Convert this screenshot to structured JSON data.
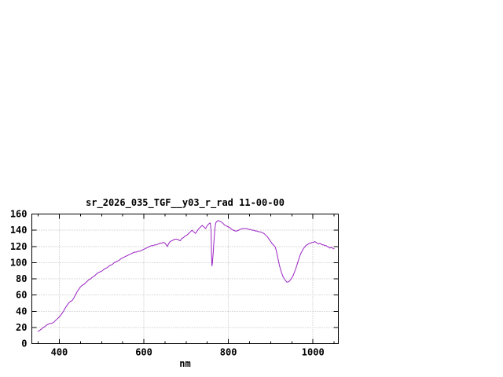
{
  "chart_data": {
    "type": "line",
    "title": "sr_2026_035_TGF__y03_r_rad 11-00-00",
    "xlabel": "nm",
    "ylabel": "",
    "xlim": [
      335,
      1060
    ],
    "ylim": [
      0,
      160
    ],
    "x_ticks": [
      400,
      600,
      800,
      1000
    ],
    "x_ticks_minor": [
      350,
      450,
      500,
      550,
      650,
      700,
      750,
      850,
      900,
      950,
      1050
    ],
    "y_ticks": [
      0,
      20,
      40,
      60,
      80,
      100,
      120,
      140,
      160
    ],
    "grid": true,
    "legend": "none",
    "line_color": "#9a22c4",
    "series": [
      {
        "name": "sr_2026_035_TGF__y03_r_rad",
        "points": [
          [
            350,
            15
          ],
          [
            355,
            17
          ],
          [
            358,
            18
          ],
          [
            362,
            20
          ],
          [
            366,
            21
          ],
          [
            370,
            23
          ],
          [
            374,
            24
          ],
          [
            378,
            25
          ],
          [
            382,
            25
          ],
          [
            386,
            26
          ],
          [
            390,
            28
          ],
          [
            394,
            30
          ],
          [
            398,
            32
          ],
          [
            402,
            34
          ],
          [
            406,
            37
          ],
          [
            410,
            40
          ],
          [
            414,
            44
          ],
          [
            418,
            47
          ],
          [
            422,
            50
          ],
          [
            426,
            52
          ],
          [
            430,
            53
          ],
          [
            434,
            56
          ],
          [
            438,
            60
          ],
          [
            442,
            64
          ],
          [
            446,
            67
          ],
          [
            450,
            70
          ],
          [
            454,
            72
          ],
          [
            458,
            73
          ],
          [
            462,
            75
          ],
          [
            466,
            77
          ],
          [
            470,
            79
          ],
          [
            474,
            80
          ],
          [
            478,
            82
          ],
          [
            482,
            83
          ],
          [
            486,
            85
          ],
          [
            490,
            87
          ],
          [
            494,
            88
          ],
          [
            498,
            89
          ],
          [
            502,
            90
          ],
          [
            506,
            92
          ],
          [
            510,
            93
          ],
          [
            514,
            94
          ],
          [
            518,
            96
          ],
          [
            522,
            97
          ],
          [
            526,
            98
          ],
          [
            530,
            100
          ],
          [
            534,
            101
          ],
          [
            538,
            102
          ],
          [
            542,
            103
          ],
          [
            546,
            105
          ],
          [
            550,
            106
          ],
          [
            554,
            107
          ],
          [
            558,
            108
          ],
          [
            562,
            109
          ],
          [
            566,
            110
          ],
          [
            570,
            111
          ],
          [
            574,
            112
          ],
          [
            578,
            113
          ],
          [
            582,
            113
          ],
          [
            586,
            114
          ],
          [
            590,
            114
          ],
          [
            594,
            115
          ],
          [
            598,
            116
          ],
          [
            602,
            117
          ],
          [
            606,
            118
          ],
          [
            610,
            119
          ],
          [
            614,
            120
          ],
          [
            618,
            121
          ],
          [
            622,
            121
          ],
          [
            626,
            122
          ],
          [
            630,
            122
          ],
          [
            634,
            123
          ],
          [
            638,
            124
          ],
          [
            642,
            124
          ],
          [
            646,
            125
          ],
          [
            650,
            124
          ],
          [
            654,
            121
          ],
          [
            656,
            120
          ],
          [
            658,
            123
          ],
          [
            662,
            126
          ],
          [
            666,
            127
          ],
          [
            670,
            128
          ],
          [
            674,
            129
          ],
          [
            678,
            129
          ],
          [
            682,
            128
          ],
          [
            686,
            127
          ],
          [
            690,
            130
          ],
          [
            694,
            131
          ],
          [
            698,
            133
          ],
          [
            702,
            134
          ],
          [
            706,
            136
          ],
          [
            710,
            138
          ],
          [
            714,
            140
          ],
          [
            718,
            138
          ],
          [
            722,
            136
          ],
          [
            726,
            139
          ],
          [
            730,
            142
          ],
          [
            734,
            144
          ],
          [
            738,
            146
          ],
          [
            742,
            144
          ],
          [
            746,
            142
          ],
          [
            750,
            146
          ],
          [
            754,
            148
          ],
          [
            757,
            149
          ],
          [
            759,
            140
          ],
          [
            760,
            110
          ],
          [
            761,
            96
          ],
          [
            762,
            99
          ],
          [
            764,
            112
          ],
          [
            766,
            128
          ],
          [
            768,
            142
          ],
          [
            770,
            149
          ],
          [
            773,
            151
          ],
          [
            776,
            152
          ],
          [
            780,
            151
          ],
          [
            784,
            150
          ],
          [
            788,
            148
          ],
          [
            792,
            146
          ],
          [
            796,
            145
          ],
          [
            800,
            144
          ],
          [
            804,
            143
          ],
          [
            808,
            141
          ],
          [
            812,
            140
          ],
          [
            816,
            139
          ],
          [
            820,
            139
          ],
          [
            824,
            140
          ],
          [
            828,
            141
          ],
          [
            832,
            142
          ],
          [
            836,
            142
          ],
          [
            840,
            142
          ],
          [
            844,
            142
          ],
          [
            848,
            141
          ],
          [
            852,
            141
          ],
          [
            856,
            140
          ],
          [
            860,
            140
          ],
          [
            864,
            139
          ],
          [
            868,
            139
          ],
          [
            872,
            138
          ],
          [
            876,
            138
          ],
          [
            880,
            137
          ],
          [
            884,
            136
          ],
          [
            888,
            134
          ],
          [
            892,
            132
          ],
          [
            896,
            129
          ],
          [
            900,
            126
          ],
          [
            904,
            123
          ],
          [
            908,
            121
          ],
          [
            910,
            120
          ],
          [
            912,
            117
          ],
          [
            914,
            113
          ],
          [
            916,
            108
          ],
          [
            918,
            103
          ],
          [
            920,
            98
          ],
          [
            923,
            92
          ],
          [
            926,
            87
          ],
          [
            929,
            83
          ],
          [
            932,
            80
          ],
          [
            935,
            78
          ],
          [
            938,
            76
          ],
          [
            941,
            76
          ],
          [
            944,
            77
          ],
          [
            947,
            79
          ],
          [
            950,
            81
          ],
          [
            953,
            84
          ],
          [
            956,
            88
          ],
          [
            959,
            92
          ],
          [
            962,
            97
          ],
          [
            965,
            102
          ],
          [
            968,
            107
          ],
          [
            971,
            111
          ],
          [
            974,
            114
          ],
          [
            977,
            117
          ],
          [
            980,
            119
          ],
          [
            983,
            121
          ],
          [
            986,
            122
          ],
          [
            989,
            123
          ],
          [
            992,
            124
          ],
          [
            995,
            124
          ],
          [
            998,
            125
          ],
          [
            1001,
            125
          ],
          [
            1004,
            126
          ],
          [
            1007,
            125
          ],
          [
            1010,
            124
          ],
          [
            1013,
            123
          ],
          [
            1016,
            124
          ],
          [
            1019,
            123
          ],
          [
            1022,
            122
          ],
          [
            1025,
            122
          ],
          [
            1028,
            121
          ],
          [
            1031,
            121
          ],
          [
            1034,
            120
          ],
          [
            1037,
            119
          ],
          [
            1040,
            118
          ],
          [
            1043,
            119
          ],
          [
            1046,
            118
          ],
          [
            1050,
            117
          ]
        ]
      }
    ]
  }
}
